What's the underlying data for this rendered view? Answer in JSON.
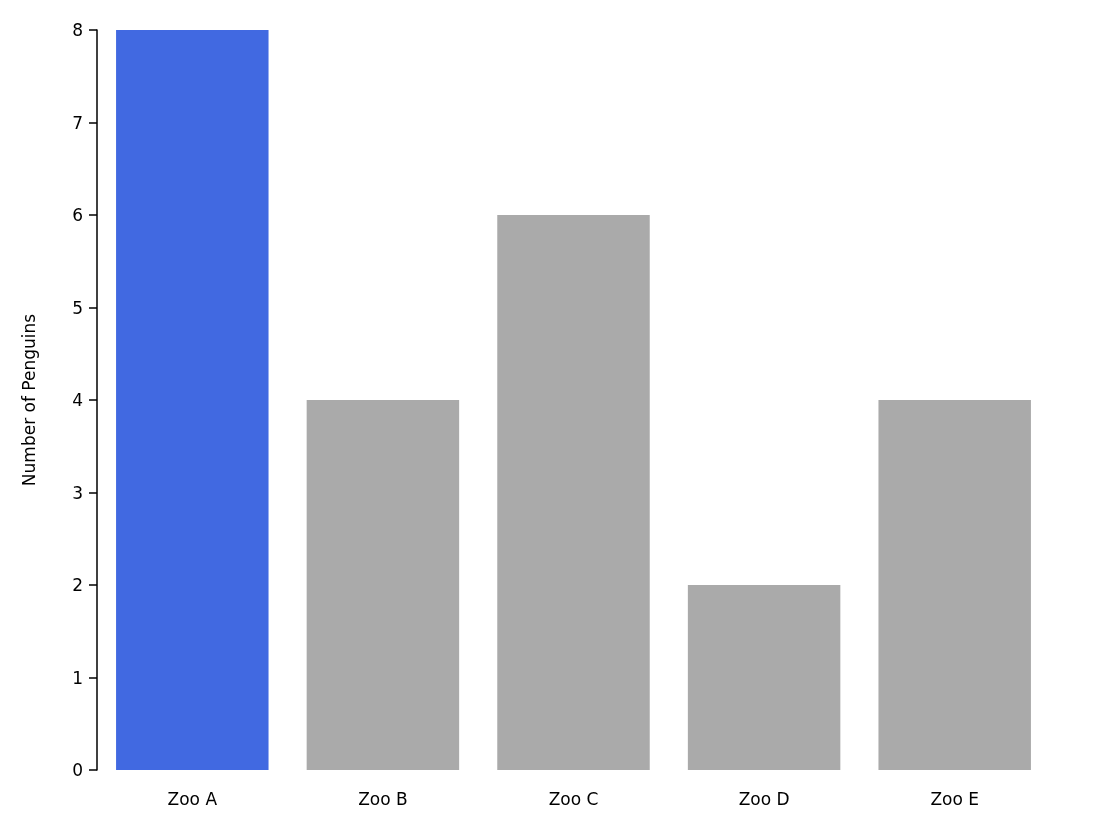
{
  "chart_data": {
    "type": "bar",
    "ylabel": "Number of Penguins",
    "categories": [
      "Zoo A",
      "Zoo B",
      "Zoo C",
      "Zoo D",
      "Zoo E"
    ],
    "values": [
      8,
      4,
      6,
      2,
      4
    ],
    "colors": [
      "#4169e1",
      "#aaaaaa",
      "#aaaaaa",
      "#aaaaaa",
      "#aaaaaa"
    ],
    "ylim": [
      0,
      8
    ],
    "yticks": [
      0,
      1,
      2,
      3,
      4,
      5,
      6,
      7,
      8
    ],
    "grid": false
  }
}
